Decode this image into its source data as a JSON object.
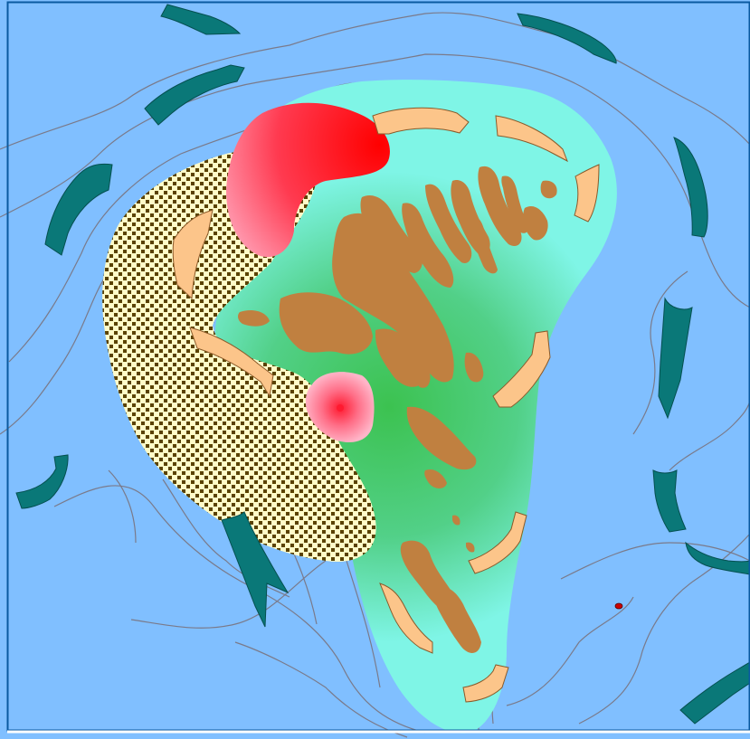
{
  "map": {
    "ocean_color": "#80bfff",
    "border_color": "#0a5aa0",
    "bathymetry_line_color": "#7a7a8a",
    "shelf_outer_color": "#7ff5e6",
    "shelf_inner_color": "#3cc250",
    "land_color": "#c08040",
    "sediment_fill_color": "#fffbc8",
    "sediment_dot_color": "#5a4200",
    "hotspot_color": "#ff2020",
    "ocean_current_color": "#0a7878",
    "shelf_current_color": "#fcc58a",
    "shelf_current_outline": "#8a5a2a",
    "small_point_color": "#cc0000"
  }
}
